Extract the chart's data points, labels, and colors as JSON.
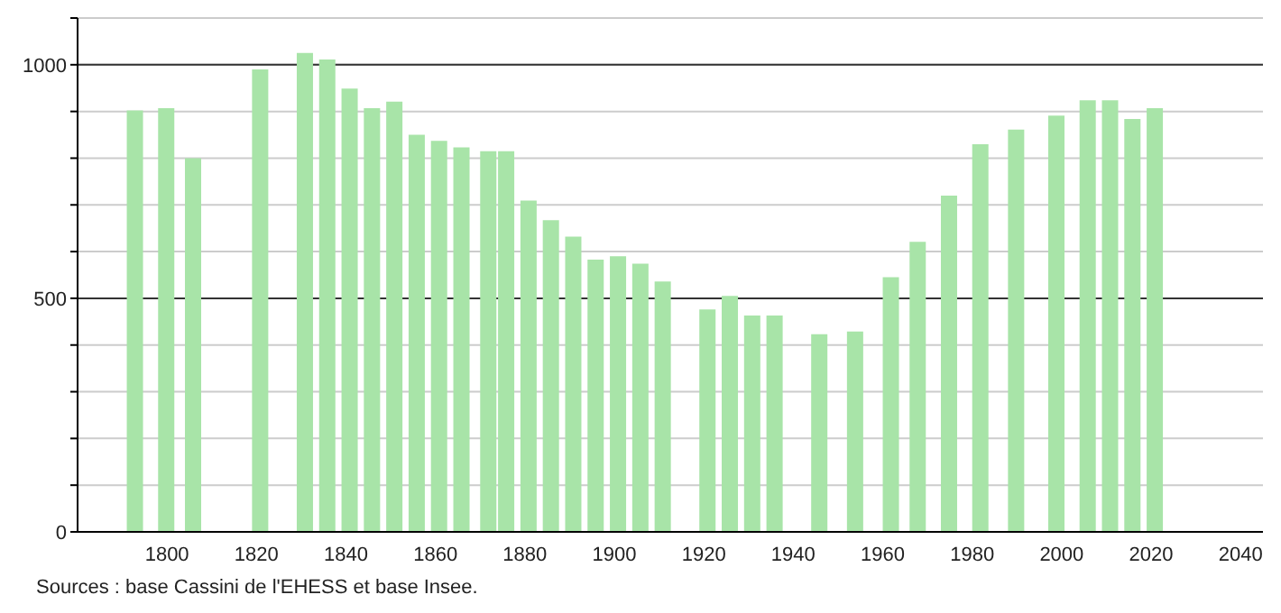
{
  "chart_data": {
    "type": "bar",
    "color": "#a8e4a8",
    "x": [
      1793,
      1800,
      1806,
      1821,
      1831,
      1836,
      1841,
      1846,
      1851,
      1856,
      1861,
      1866,
      1872,
      1876,
      1881,
      1886,
      1891,
      1896,
      1901,
      1906,
      1911,
      1921,
      1926,
      1931,
      1936,
      1946,
      1954,
      1962,
      1968,
      1975,
      1982,
      1990,
      1999,
      2006,
      2011,
      2016,
      2021
    ],
    "values": [
      902,
      907,
      800,
      990,
      1025,
      1011,
      949,
      907,
      921,
      850,
      837,
      823,
      815,
      815,
      709,
      667,
      632,
      583,
      590,
      574,
      536,
      476,
      505,
      463,
      463,
      423,
      429,
      545,
      621,
      720,
      830,
      861,
      891,
      924,
      924,
      884,
      907
    ],
    "xlim": [
      1780,
      2045
    ],
    "xticks": [
      1800,
      1820,
      1840,
      1860,
      1880,
      1900,
      1920,
      1940,
      1960,
      1980,
      2000,
      2020,
      2040
    ],
    "ylim": [
      0,
      1100
    ],
    "yticks": [
      0,
      {
        "value": 100,
        "label": null
      },
      {
        "value": 200,
        "label": null
      },
      {
        "value": 300,
        "label": null
      },
      {
        "value": 400,
        "label": null
      },
      500,
      {
        "value": 600,
        "label": null
      },
      {
        "value": 700,
        "label": null
      },
      {
        "value": 800,
        "label": null
      },
      {
        "value": 900,
        "label": null
      },
      1000,
      {
        "value": 1100,
        "label": null
      }
    ],
    "grid": "y",
    "annotations": [
      "Sources : base Cassini de l'EHESS et base Insee."
    ]
  }
}
